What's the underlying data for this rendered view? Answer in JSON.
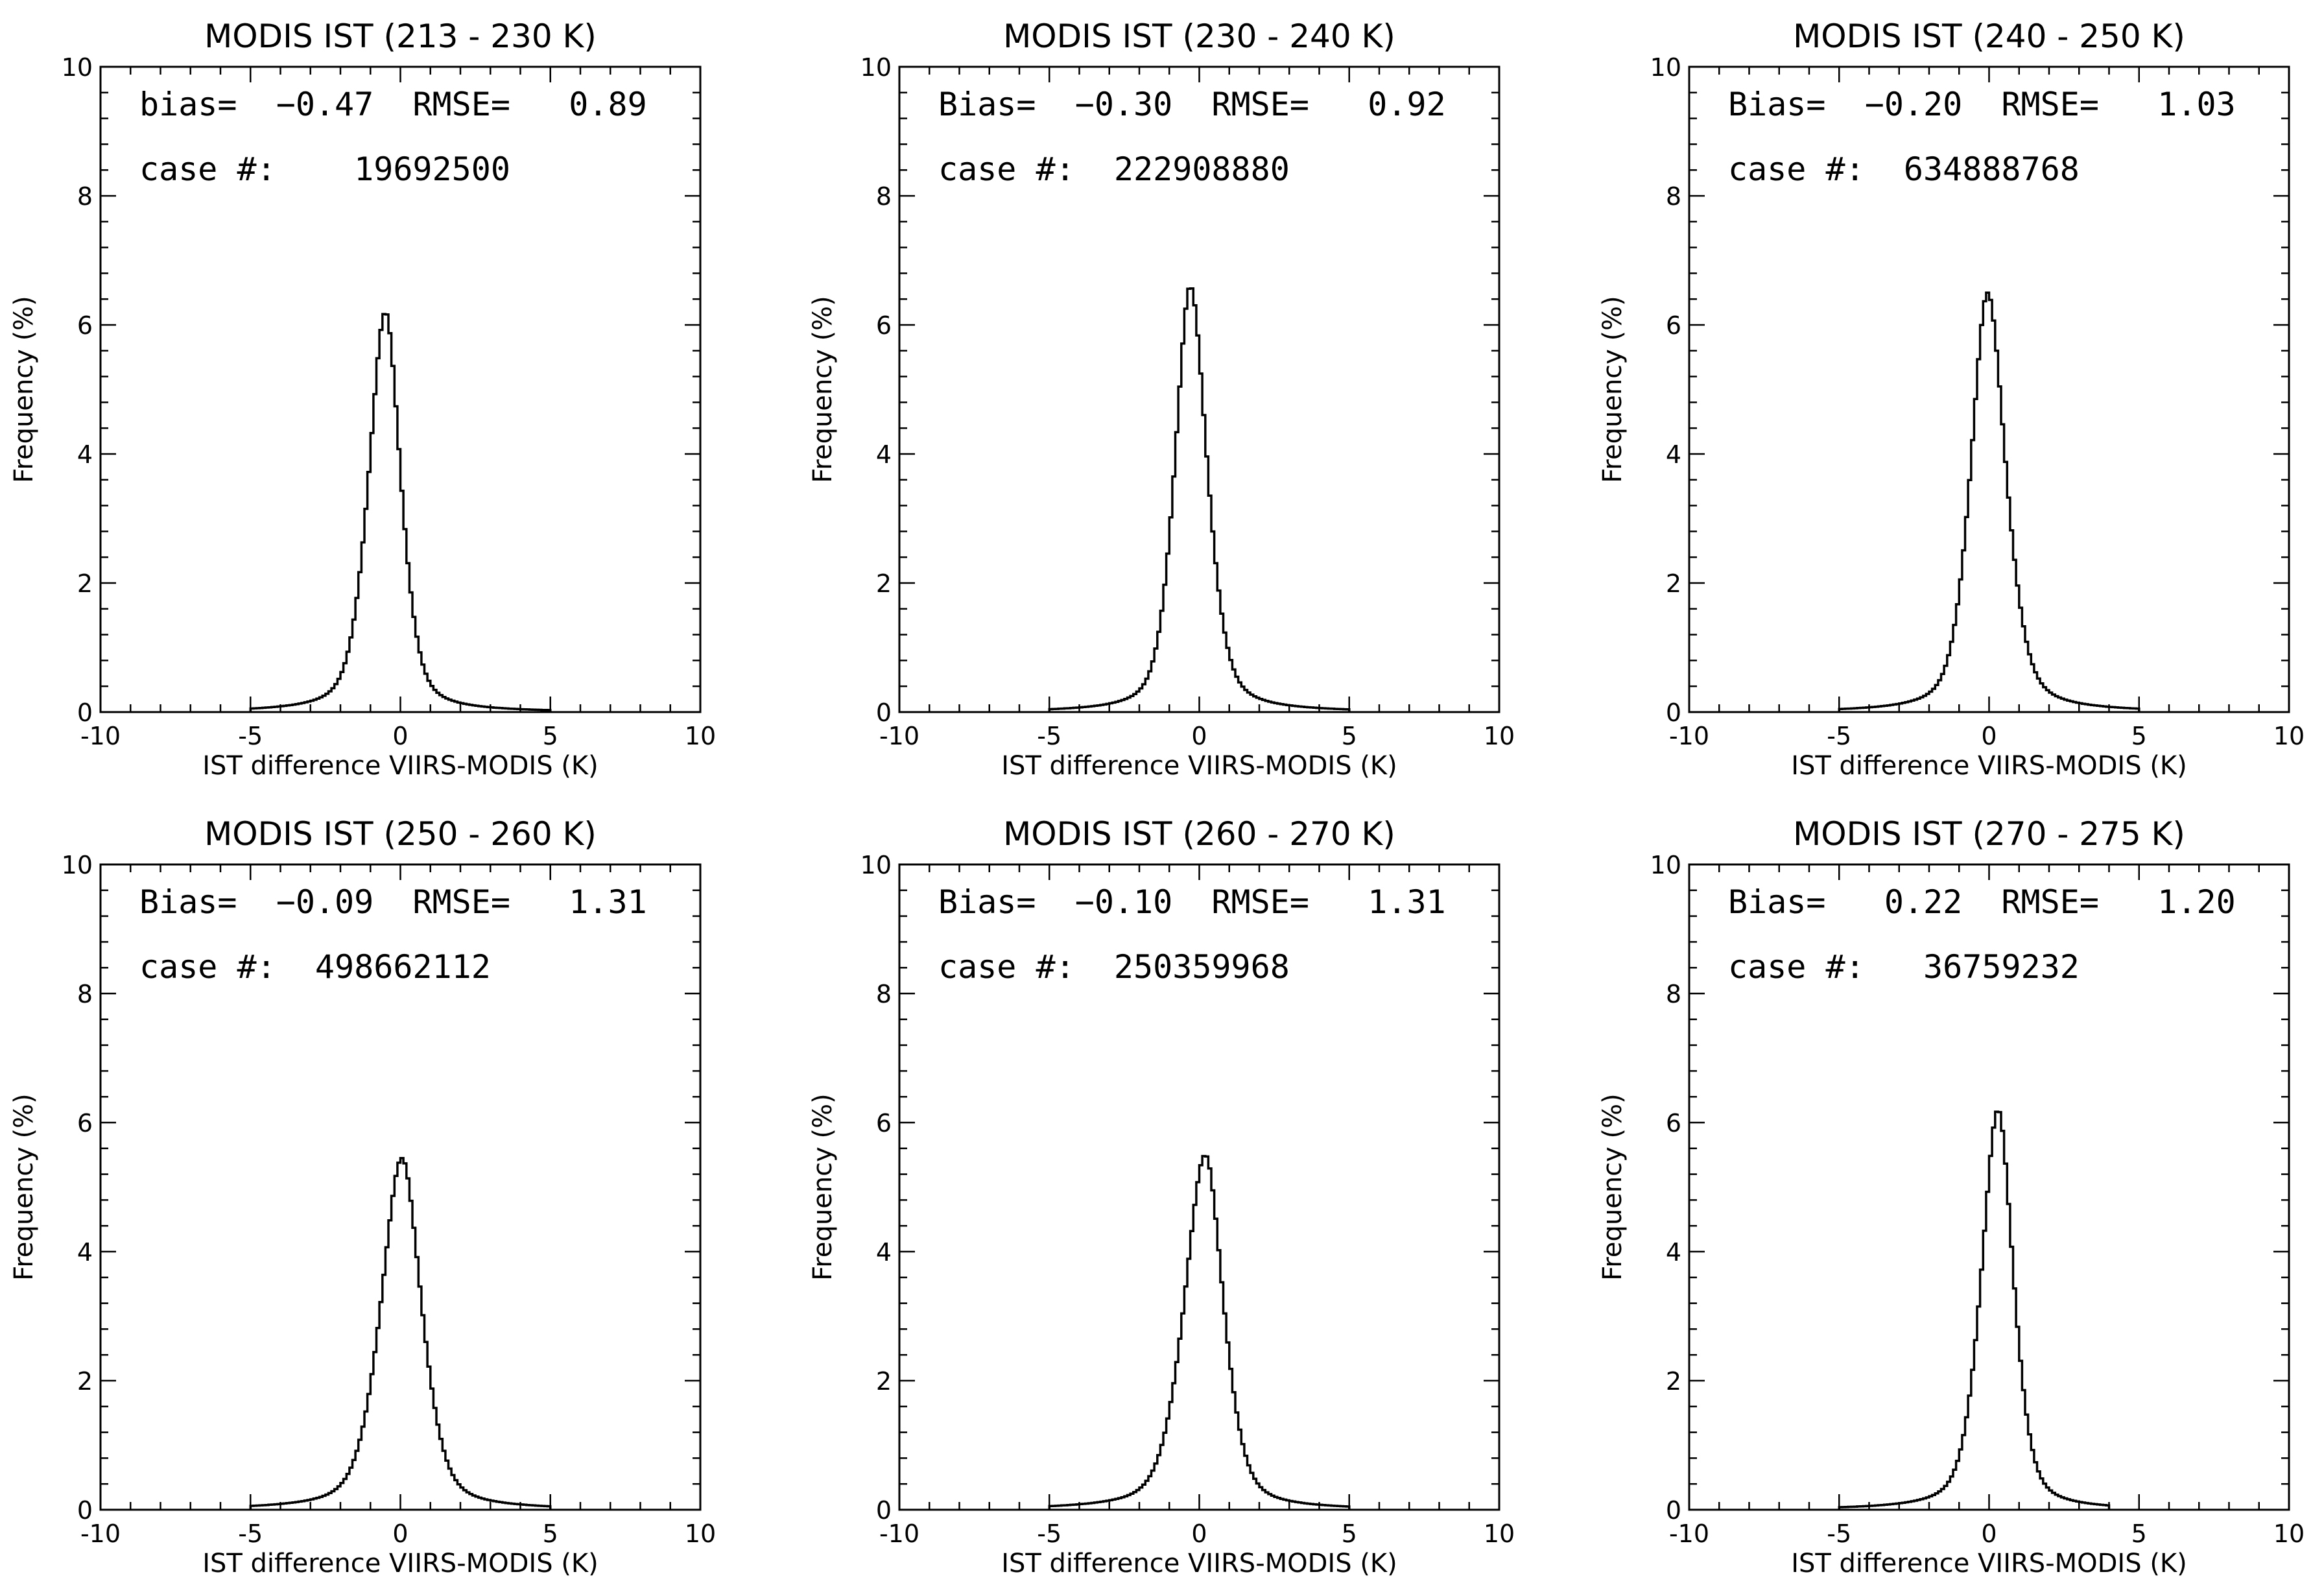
{
  "chart_data": [
    {
      "type": "histogram",
      "title": "MODIS IST (213 - 230 K)",
      "xlabel": "IST difference VIIRS-MODIS (K)",
      "ylabel": "Frequency (%)",
      "xlim": [
        -10,
        10
      ],
      "ylim": [
        0,
        10
      ],
      "xticks": [
        "-10",
        "-5",
        "0",
        "5",
        "10"
      ],
      "yticks": [
        "0",
        "2",
        "4",
        "6",
        "8",
        "10"
      ],
      "annotation_line1": "bias=  −0.47  RMSE=   0.89",
      "annotation_line2": "case #:    19692500",
      "peak_x": -0.5,
      "peak_y": 6.2,
      "width_left": 0.6,
      "width_right": 0.55,
      "range": [
        -5,
        5
      ]
    },
    {
      "type": "histogram",
      "title": "MODIS IST (230 - 240 K)",
      "xlabel": "IST difference VIIRS-MODIS (K)",
      "ylabel": "Frequency (%)",
      "xlim": [
        -10,
        10
      ],
      "ylim": [
        0,
        10
      ],
      "xticks": [
        "-10",
        "-5",
        "0",
        "5",
        "10"
      ],
      "yticks": [
        "0",
        "2",
        "4",
        "6",
        "8",
        "10"
      ],
      "annotation_line1": "Bias=  −0.30  RMSE=   0.92",
      "annotation_line2": "case #:  222908880",
      "peak_x": -0.3,
      "peak_y": 6.6,
      "width_left": 0.55,
      "width_right": 0.6,
      "range": [
        -5,
        5
      ]
    },
    {
      "type": "histogram",
      "title": "MODIS IST (240 - 250 K)",
      "xlabel": "IST difference VIIRS-MODIS (K)",
      "ylabel": "Frequency (%)",
      "xlim": [
        -10,
        10
      ],
      "ylim": [
        0,
        10
      ],
      "xticks": [
        "-10",
        "-5",
        "0",
        "5",
        "10"
      ],
      "yticks": [
        "0",
        "2",
        "4",
        "6",
        "8",
        "10"
      ],
      "annotation_line1": "Bias=  −0.20  RMSE=   1.03",
      "annotation_line2": "case #:  634888768",
      "peak_x": -0.05,
      "peak_y": 6.5,
      "width_left": 0.6,
      "width_right": 0.65,
      "range": [
        -5,
        5
      ]
    },
    {
      "type": "histogram",
      "title": "MODIS IST (250 - 260 K)",
      "xlabel": "IST difference VIIRS-MODIS (K)",
      "ylabel": "Frequency (%)",
      "xlim": [
        -10,
        10
      ],
      "ylim": [
        0,
        10
      ],
      "xticks": [
        "-10",
        "-5",
        "0",
        "5",
        "10"
      ],
      "yticks": [
        "0",
        "2",
        "4",
        "6",
        "8",
        "10"
      ],
      "annotation_line1": "Bias=  −0.09  RMSE=   1.31",
      "annotation_line2": "case #:  498662112",
      "peak_x": 0.05,
      "peak_y": 5.45,
      "width_left": 0.75,
      "width_right": 0.7,
      "range": [
        -5,
        5
      ]
    },
    {
      "type": "histogram",
      "title": "MODIS IST (260 - 270 K)",
      "xlabel": "IST difference VIIRS-MODIS (K)",
      "ylabel": "Frequency (%)",
      "xlim": [
        -10,
        10
      ],
      "ylim": [
        0,
        10
      ],
      "xticks": [
        "-10",
        "-5",
        "0",
        "5",
        "10"
      ],
      "yticks": [
        "0",
        "2",
        "4",
        "6",
        "8",
        "10"
      ],
      "annotation_line1": "Bias=  −0.10  RMSE=   1.31",
      "annotation_line2": "case #:  250359968",
      "peak_x": 0.2,
      "peak_y": 5.5,
      "width_left": 0.75,
      "width_right": 0.65,
      "range": [
        -5,
        5
      ]
    },
    {
      "type": "histogram",
      "title": "MODIS IST (270 - 275 K)",
      "xlabel": "IST difference VIIRS-MODIS (K)",
      "ylabel": "Frequency (%)",
      "xlim": [
        -10,
        10
      ],
      "ylim": [
        0,
        10
      ],
      "xticks": [
        "-10",
        "-5",
        "0",
        "5",
        "10"
      ],
      "yticks": [
        "0",
        "2",
        "4",
        "6",
        "8",
        "10"
      ],
      "annotation_line1": "Bias=   0.22  RMSE=   1.20",
      "annotation_line2": "case #:   36759232",
      "peak_x": 0.3,
      "peak_y": 6.2,
      "width_left": 0.6,
      "width_right": 0.55,
      "range": [
        -5,
        4
      ]
    }
  ]
}
